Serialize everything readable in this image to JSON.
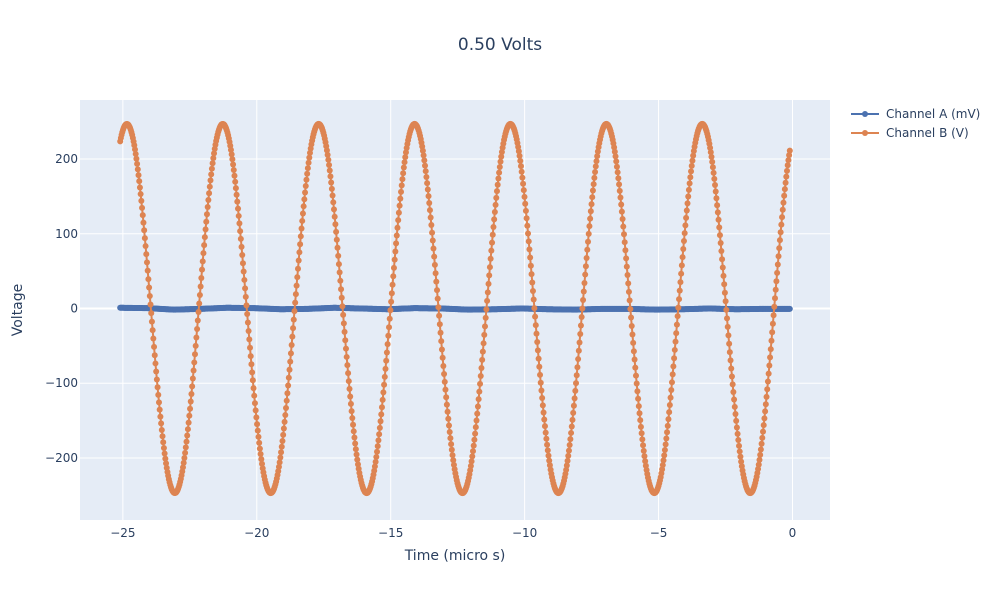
{
  "chart_data": {
    "type": "line",
    "mode": "lines+markers",
    "title": "0.50 Volts",
    "xlabel": "Time (micro s)",
    "ylabel": "Voltage",
    "xlim": [
      -26.6,
      1.4
    ],
    "ylim": [
      -283,
      279
    ],
    "x_ticks": [
      -25,
      -20,
      -15,
      -10,
      -5,
      0
    ],
    "x_tick_labels": [
      "−25",
      "−20",
      "−15",
      "−10",
      "−5",
      "0"
    ],
    "y_ticks": [
      200,
      100,
      0,
      -100,
      -200
    ],
    "y_tick_labels": [
      "200",
      "100",
      "0",
      "−100",
      "−200"
    ],
    "grid": true,
    "legend_position": "top-right outside",
    "background": "#e5ecf6",
    "series": [
      {
        "name": "Channel A (mV)",
        "color": "#4c72b0",
        "x_start": -25.1,
        "x_end": -0.1,
        "points": [
          [
            -25.1,
            1.0
          ],
          [
            -24.1,
            0.5
          ],
          [
            -23.1,
            -1.5
          ],
          [
            -22.1,
            -0.5
          ],
          [
            -21.1,
            1.0
          ],
          [
            -20.1,
            0.5
          ],
          [
            -19.1,
            -1.0
          ],
          [
            -18.1,
            -0.5
          ],
          [
            -17.1,
            1.0
          ],
          [
            -16.1,
            0.0
          ],
          [
            -15.1,
            -1.0
          ],
          [
            -14.1,
            0.5
          ],
          [
            -13.1,
            0.0
          ],
          [
            -12.1,
            -1.5
          ],
          [
            -11.1,
            -1.0
          ],
          [
            -10.1,
            0.0
          ],
          [
            -9.1,
            -1.0
          ],
          [
            -8.1,
            -1.5
          ],
          [
            -7.1,
            -0.5
          ],
          [
            -6.1,
            -0.5
          ],
          [
            -5.1,
            -1.5
          ],
          [
            -4.1,
            -1.0
          ],
          [
            -3.1,
            0.0
          ],
          [
            -2.1,
            -1.0
          ],
          [
            -1.1,
            -0.5
          ],
          [
            -0.1,
            -0.5
          ]
        ]
      },
      {
        "name": "Channel B (V)",
        "color": "#dd8452",
        "x_start": -25.1,
        "x_end": -0.1,
        "amplitude": 247,
        "period": 3.58,
        "peak_times": [
          -24.85,
          -21.27,
          -17.69,
          -14.11,
          -10.53,
          -6.95,
          -3.37
        ],
        "trough_times": [
          -23.06,
          -19.48,
          -15.9,
          -12.32,
          -8.74,
          -5.16,
          -1.58
        ],
        "start_value": 205,
        "end_value": 188
      }
    ]
  }
}
